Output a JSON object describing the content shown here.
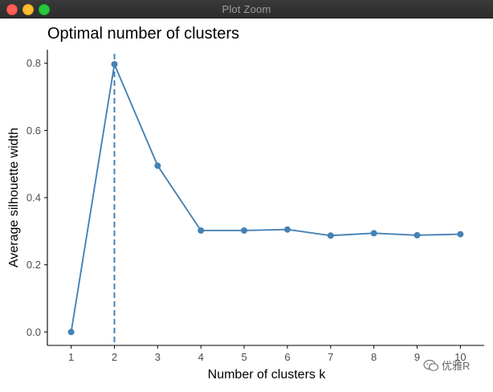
{
  "window": {
    "title": "Plot Zoom",
    "buttons": [
      "close",
      "minimize",
      "maximize"
    ]
  },
  "watermark": {
    "icon": "wechat-icon",
    "text": "优雅R"
  },
  "chart_data": {
    "type": "line",
    "title": "Optimal number of clusters",
    "xlabel": "Number of clusters k",
    "ylabel": "Average silhouette width",
    "x": [
      1,
      2,
      3,
      4,
      5,
      6,
      7,
      8,
      9,
      10
    ],
    "values": [
      0.0,
      0.797,
      0.495,
      0.302,
      0.302,
      0.305,
      0.287,
      0.294,
      0.288,
      0.291
    ],
    "xticks": [
      "1",
      "2",
      "3",
      "4",
      "5",
      "6",
      "7",
      "8",
      "9",
      "10"
    ],
    "yticks": [
      "0.0",
      "0.2",
      "0.4",
      "0.6",
      "0.8"
    ],
    "ylim": [
      -0.04,
      0.84
    ],
    "xlim": [
      0.45,
      10.55
    ],
    "vline": {
      "x": 2,
      "style": "dashed"
    },
    "color": "#4682B4",
    "grid": false
  }
}
